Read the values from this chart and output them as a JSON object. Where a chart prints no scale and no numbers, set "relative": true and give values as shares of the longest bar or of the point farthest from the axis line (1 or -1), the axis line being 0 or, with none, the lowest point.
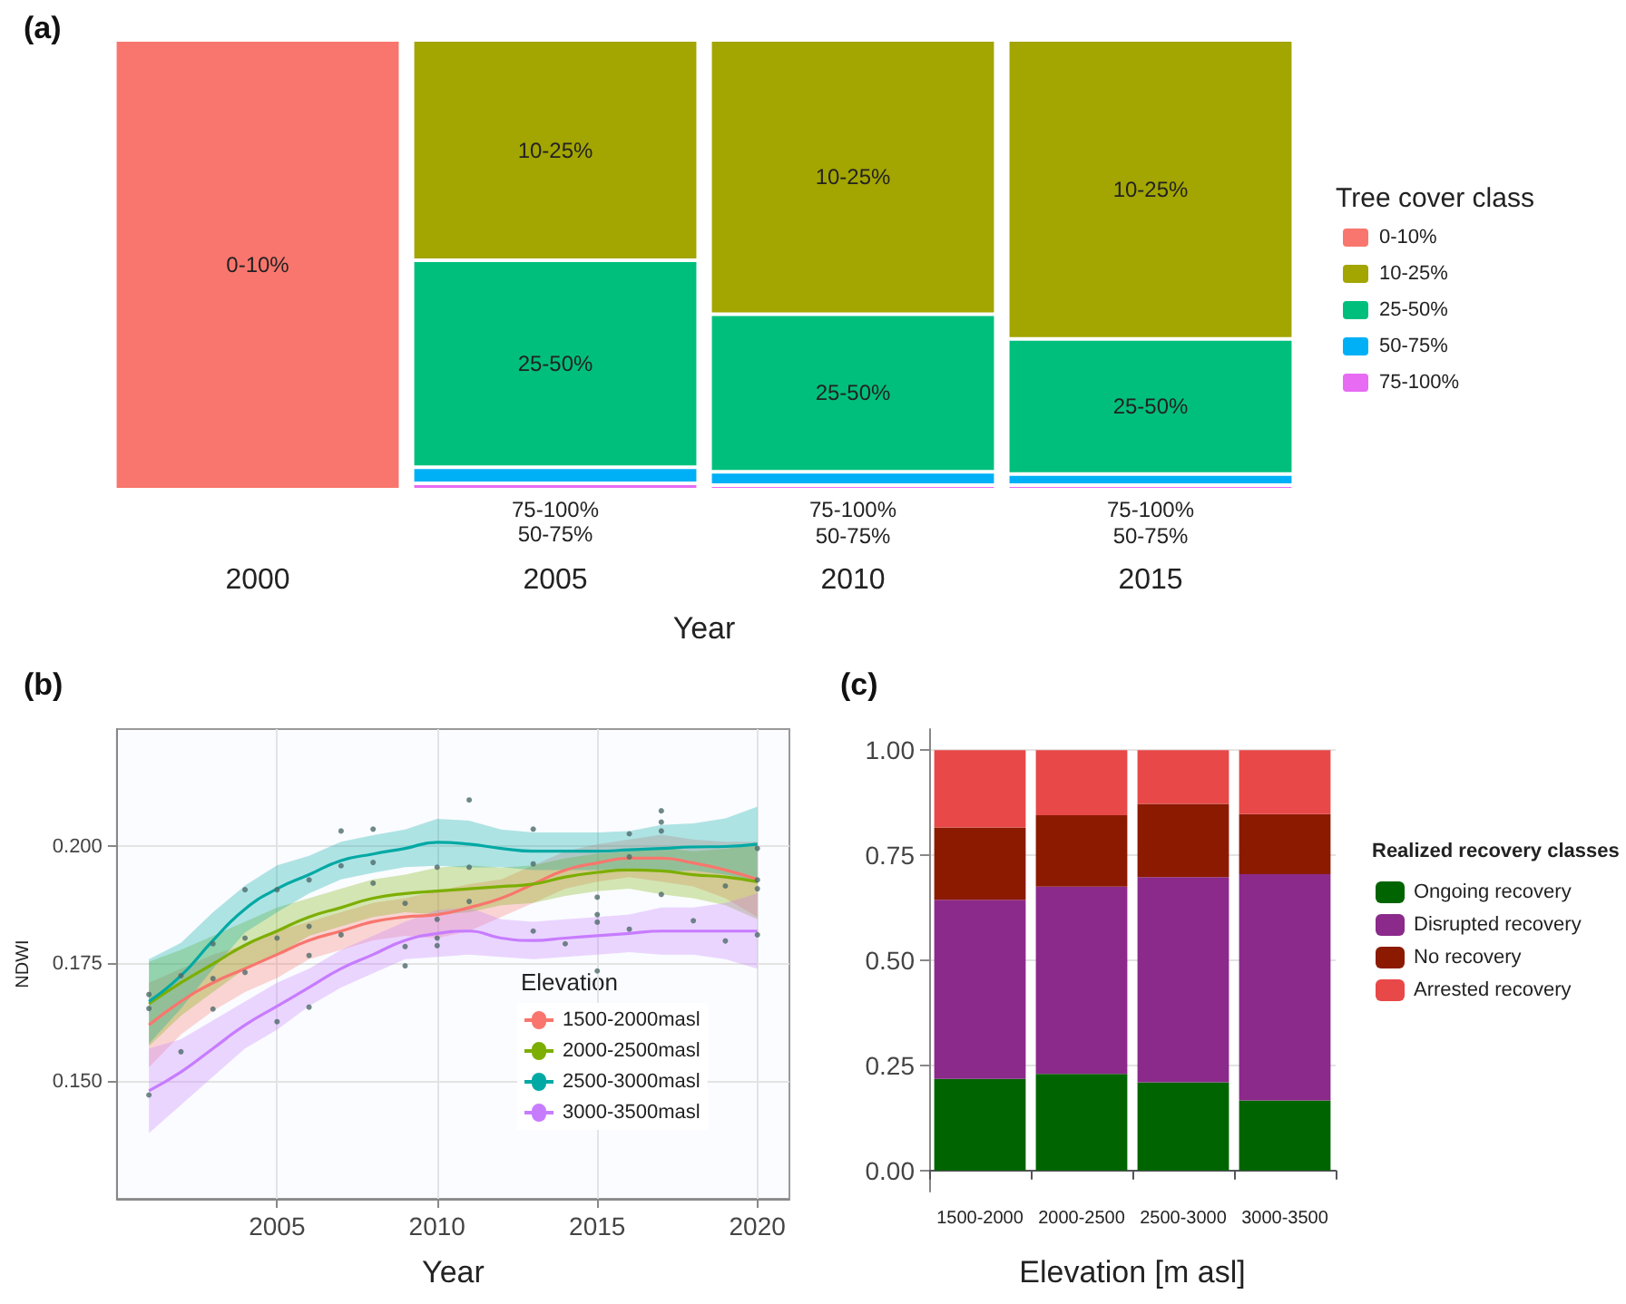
{
  "chart_data": [
    {
      "type": "bar",
      "title": "(a)",
      "xlabel": "Year",
      "legend_title": "Tree cover class",
      "categories": [
        "2000",
        "2005",
        "2010",
        "2015"
      ],
      "stacked": true,
      "relative": true,
      "legend": "right",
      "series": [
        {
          "name": "75-100%",
          "color": "#e76bf3",
          "values": [
            0,
            0.014,
            0.01,
            0.01
          ]
        },
        {
          "name": "50-75%",
          "color": "#00b0f6",
          "values": [
            0,
            0.036,
            0.03,
            0.025
          ]
        },
        {
          "name": "25-50%",
          "color": "#00bf7d",
          "values": [
            0,
            0.46,
            0.35,
            0.3
          ]
        },
        {
          "name": "10-25%",
          "color": "#a3a500",
          "values": [
            0,
            0.49,
            0.61,
            0.665
          ]
        },
        {
          "name": "0-10%",
          "color": "#f8766d",
          "values": [
            1,
            0,
            0,
            0
          ]
        }
      ]
    },
    {
      "type": "line",
      "title": "(b)",
      "xlabel": "Year",
      "ylabel": "NDWI",
      "legend_title": "Elevation",
      "xlim": [
        2000,
        2021
      ],
      "xticks": [
        2005,
        2010,
        2015,
        2020
      ],
      "ylim": [
        0.125,
        0.225
      ],
      "yticks": [
        {
          "value": 0.15,
          "label": "0.150"
        },
        {
          "value": 0.175,
          "label": "0.175"
        },
        {
          "value": 0.2,
          "label": "0.200"
        }
      ],
      "grid": true,
      "legend": "bottom right",
      "marker": "none",
      "x": [
        2001,
        2002,
        2003,
        2004,
        2005,
        2006,
        2007,
        2008,
        2009,
        2010,
        2011,
        2012,
        2013,
        2014,
        2015,
        2016,
        2017,
        2018,
        2019,
        2020
      ],
      "series": [
        {
          "name": "1500-2000masl",
          "color": "#f8766d",
          "values": [
            0.162,
            0.167,
            0.171,
            0.174,
            0.177,
            0.18,
            0.182,
            0.184,
            0.185,
            0.1855,
            0.187,
            0.189,
            0.192,
            0.195,
            0.1965,
            0.1975,
            0.1975,
            0.1965,
            0.195,
            0.193
          ],
          "lower": [
            0.153,
            0.16,
            0.165,
            0.169,
            0.172,
            0.176,
            0.178,
            0.18,
            0.181,
            0.1805,
            0.182,
            0.185,
            0.188,
            0.191,
            0.1925,
            0.1935,
            0.1925,
            0.1915,
            0.189,
            0.185
          ],
          "upper": [
            0.171,
            0.174,
            0.177,
            0.179,
            0.182,
            0.184,
            0.186,
            0.188,
            0.189,
            0.1905,
            0.192,
            0.193,
            0.196,
            0.199,
            0.2005,
            0.2015,
            0.2025,
            0.2015,
            0.201,
            0.201
          ]
        },
        {
          "name": "2000-2500masl",
          "color": "#7cae00",
          "values": [
            0.1665,
            0.171,
            0.175,
            0.179,
            0.182,
            0.185,
            0.187,
            0.189,
            0.19,
            0.1905,
            0.191,
            0.1915,
            0.192,
            0.1935,
            0.1945,
            0.195,
            0.1948,
            0.194,
            0.1935,
            0.1925
          ],
          "lower": [
            0.1575,
            0.164,
            0.169,
            0.174,
            0.177,
            0.181,
            0.183,
            0.185,
            0.186,
            0.1855,
            0.186,
            0.1875,
            0.188,
            0.1895,
            0.1905,
            0.191,
            0.1898,
            0.189,
            0.1875,
            0.1845
          ],
          "upper": [
            0.1755,
            0.178,
            0.181,
            0.184,
            0.187,
            0.189,
            0.191,
            0.193,
            0.194,
            0.1955,
            0.196,
            0.1955,
            0.196,
            0.1975,
            0.1985,
            0.199,
            0.1998,
            0.199,
            0.1995,
            0.2005
          ]
        },
        {
          "name": "2500-3000masl",
          "color": "#00a9a4",
          "values": [
            0.167,
            0.1725,
            0.18,
            0.1867,
            0.191,
            0.194,
            0.197,
            0.1984,
            0.1996,
            0.2009,
            0.2005,
            0.1996,
            0.199,
            0.199,
            0.199,
            0.1993,
            0.1996,
            0.1999,
            0.2,
            0.2005
          ],
          "lower": [
            0.158,
            0.1655,
            0.174,
            0.1817,
            0.186,
            0.19,
            0.193,
            0.1944,
            0.1956,
            0.1959,
            0.1955,
            0.1956,
            0.195,
            0.195,
            0.195,
            0.1953,
            0.1946,
            0.1949,
            0.194,
            0.1925
          ],
          "upper": [
            0.176,
            0.1795,
            0.186,
            0.1917,
            0.196,
            0.198,
            0.201,
            0.2024,
            0.2036,
            0.2059,
            0.2055,
            0.2036,
            0.203,
            0.203,
            0.203,
            0.2033,
            0.2046,
            0.2049,
            0.206,
            0.2085
          ]
        },
        {
          "name": "3000-3500masl",
          "color": "#c77cff",
          "values": [
            0.148,
            0.152,
            0.157,
            0.162,
            0.166,
            0.17,
            0.174,
            0.177,
            0.18,
            0.1815,
            0.182,
            0.1805,
            0.18,
            0.1805,
            0.181,
            0.1815,
            0.182,
            0.182,
            0.182,
            0.182
          ],
          "lower": [
            0.139,
            0.145,
            0.151,
            0.157,
            0.161,
            0.166,
            0.17,
            0.173,
            0.176,
            0.1765,
            0.177,
            0.1765,
            0.176,
            0.1765,
            0.177,
            0.1775,
            0.177,
            0.177,
            0.176,
            0.174
          ],
          "upper": [
            0.157,
            0.159,
            0.163,
            0.167,
            0.171,
            0.174,
            0.178,
            0.181,
            0.184,
            0.1865,
            0.187,
            0.1845,
            0.184,
            0.1845,
            0.185,
            0.1855,
            0.187,
            0.187,
            0.188,
            0.19
          ]
        },
        {
          "type": "scatter",
          "marker": "circle",
          "color": "#4f6a6a",
          "x": [
            2001,
            2001,
            2001,
            2002,
            2002,
            2003,
            2003,
            2003,
            2004,
            2004,
            2004,
            2005,
            2005,
            2005,
            2006,
            2006,
            2006,
            2006,
            2007,
            2007,
            2007,
            2008,
            2008,
            2008,
            2009,
            2009,
            2009,
            2010,
            2010,
            2010,
            2010,
            2011,
            2011,
            2011,
            2013,
            2013,
            2013,
            2014,
            2015,
            2015,
            2015,
            2015,
            2016,
            2016,
            2016,
            2017,
            2017,
            2017,
            2017,
            2018,
            2019,
            2019,
            2020,
            2020,
            2020,
            2020
          ],
          "values": [
            0.1685,
            0.1655,
            0.1471,
            0.1563,
            0.1725,
            0.1654,
            0.1719,
            0.1793,
            0.1908,
            0.1805,
            0.1732,
            0.1908,
            0.1805,
            0.1627,
            0.1929,
            0.183,
            0.1768,
            0.1658,
            0.2033,
            0.1959,
            0.1812,
            0.2037,
            0.1966,
            0.1922,
            0.1879,
            0.1787,
            0.1746,
            0.1956,
            0.1845,
            0.1805,
            0.1789,
            0.2099,
            0.1956,
            0.1883,
            0.2037,
            0.1963,
            0.182,
            0.1793,
            0.1892,
            0.1855,
            0.1839,
            0.1735,
            0.2027,
            0.1978,
            0.1824,
            0.2076,
            0.2052,
            0.2033,
            0.1898,
            0.1842,
            0.1799,
            0.1916,
            0.1996,
            0.1929,
            0.191,
            0.1812
          ]
        }
      ]
    },
    {
      "type": "bar",
      "title": "(c)",
      "xlabel": "Elevation [m asl]",
      "legend_title": "Realized recovery classes",
      "categories": [
        "1500-2000",
        "2000-2500",
        "2500-3000",
        "3000-3500"
      ],
      "stacked": true,
      "ylim": [
        -0.05,
        1.05
      ],
      "yticks": [
        {
          "value": 0,
          "label": "0.00"
        },
        {
          "value": 0.25,
          "label": "0.25"
        },
        {
          "value": 0.5,
          "label": "0.50"
        },
        {
          "value": 0.75,
          "label": "0.75"
        },
        {
          "value": 1,
          "label": "1.00"
        }
      ],
      "grid": true,
      "legend": "right",
      "series": [
        {
          "name": "Ongoing recovery",
          "color": "#006400",
          "values": [
            0.218,
            0.23,
            0.21,
            0.167
          ]
        },
        {
          "name": "Disrupted recovery",
          "color": "#8b2a8b",
          "values": [
            0.426,
            0.445,
            0.488,
            0.538
          ]
        },
        {
          "name": "No recovery",
          "color": "#8b1a00",
          "values": [
            0.172,
            0.17,
            0.174,
            0.143
          ]
        },
        {
          "name": "Arrested recovery",
          "color": "#e84848",
          "values": [
            0.184,
            0.155,
            0.128,
            0.152
          ]
        }
      ]
    }
  ]
}
